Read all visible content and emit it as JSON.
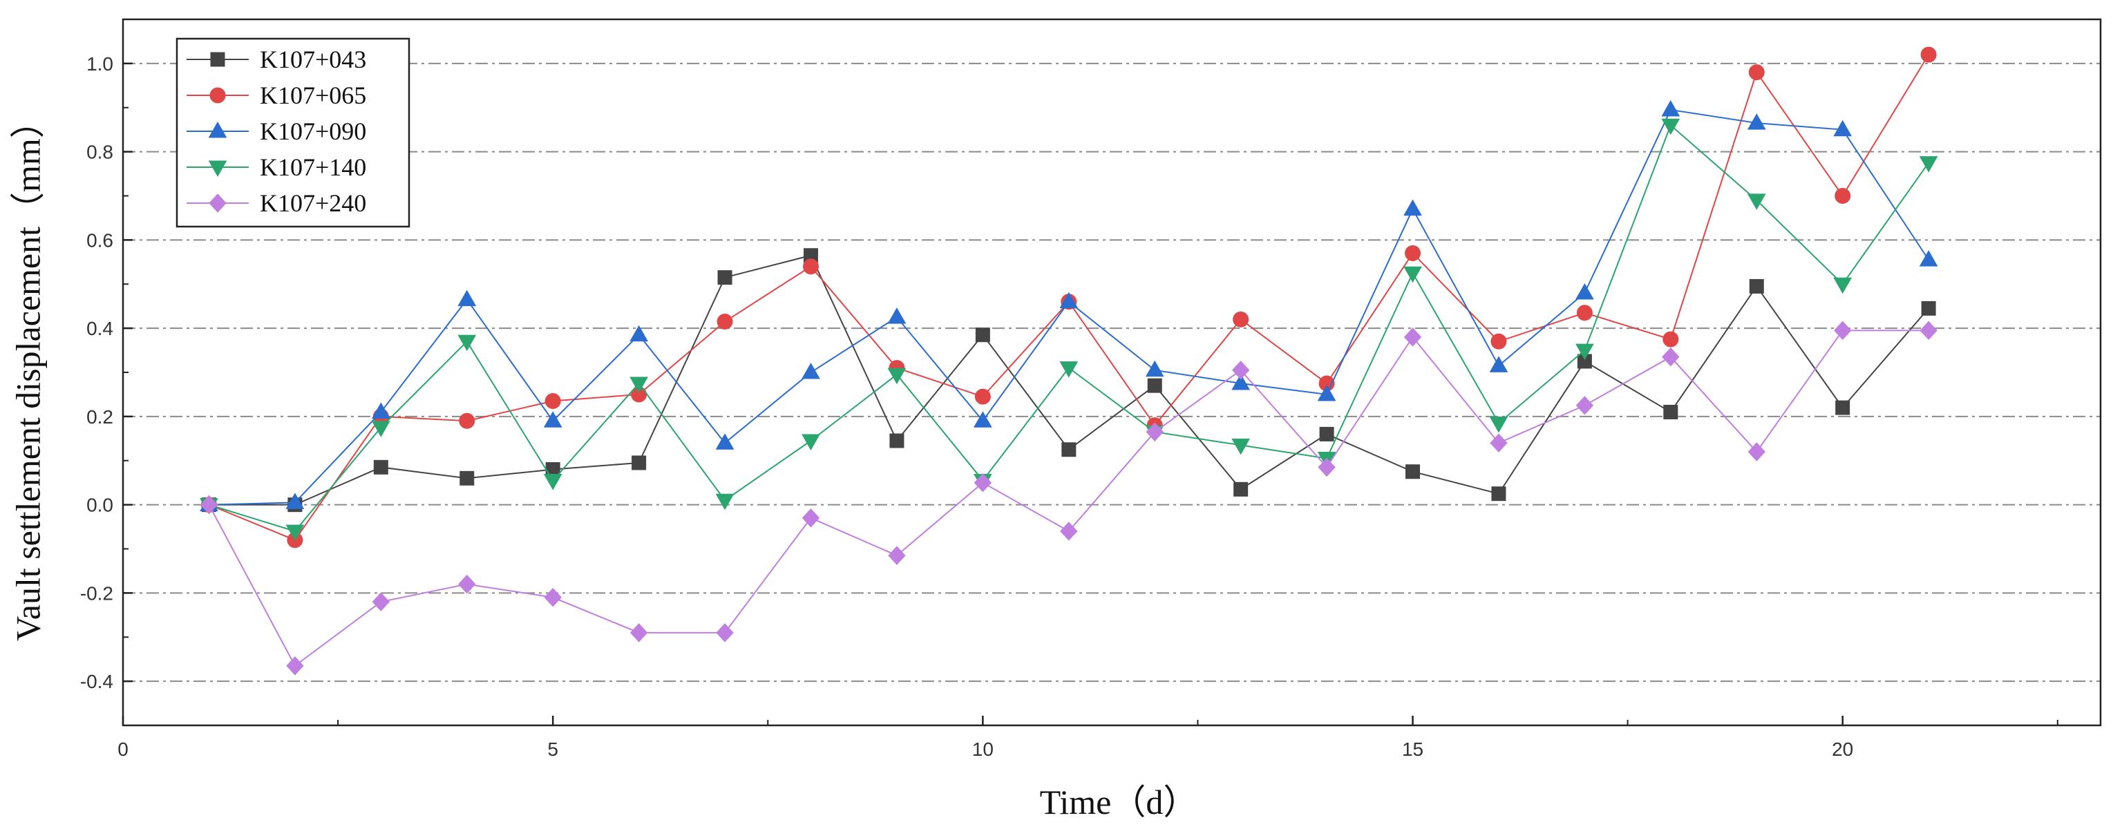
{
  "chart_data": {
    "type": "line",
    "xlabel": "Time（d）",
    "ylabel": "Vault settlement displacement（mm）",
    "xlim": [
      0,
      23
    ],
    "ylim": [
      -0.5,
      1.1
    ],
    "xticks": [
      0,
      5,
      10,
      15,
      20
    ],
    "yticks": [
      -0.4,
      -0.2,
      0.0,
      0.2,
      0.4,
      0.6,
      0.8,
      1.0
    ],
    "ytick_labels": [
      "-0.4",
      "-0.2",
      "0.0",
      "0.2",
      "0.4",
      "0.6",
      "0.8",
      "1.0"
    ],
    "grid": "horizontal dash-dot",
    "legend_position": "top-left",
    "x": [
      1,
      2,
      3,
      4,
      5,
      6,
      7,
      8,
      9,
      10,
      11,
      12,
      13,
      14,
      15,
      16,
      17,
      18,
      19,
      20,
      21
    ],
    "series": [
      {
        "name": "K107+043",
        "marker": "square",
        "color": "#444444",
        "values": [
          0.0,
          0.0,
          0.085,
          0.06,
          0.08,
          0.095,
          0.515,
          0.565,
          0.145,
          0.385,
          0.125,
          0.27,
          0.035,
          0.16,
          0.075,
          0.025,
          0.325,
          0.21,
          0.495,
          0.22,
          0.445
        ]
      },
      {
        "name": "K107+065",
        "marker": "circle",
        "color": "#e04646",
        "values": [
          0.0,
          -0.08,
          0.2,
          0.19,
          0.235,
          0.25,
          0.415,
          0.54,
          0.31,
          0.245,
          0.46,
          0.18,
          0.42,
          0.275,
          0.57,
          0.37,
          0.435,
          0.375,
          0.98,
          0.7,
          1.02
        ]
      },
      {
        "name": "K107+090",
        "marker": "triangle-up",
        "color": "#2b6ccf",
        "values": [
          0.0,
          0.005,
          0.21,
          0.465,
          0.19,
          0.385,
          0.14,
          0.3,
          0.425,
          0.19,
          0.46,
          0.305,
          0.275,
          0.25,
          0.67,
          0.315,
          0.48,
          0.895,
          0.865,
          0.85,
          0.555
        ]
      },
      {
        "name": "K107+140",
        "marker": "triangle-down",
        "color": "#2aa56e",
        "values": [
          0.0,
          -0.06,
          0.175,
          0.37,
          0.055,
          0.275,
          0.01,
          0.145,
          0.295,
          0.055,
          0.31,
          0.165,
          0.135,
          0.105,
          0.525,
          0.185,
          0.35,
          0.86,
          0.69,
          0.5,
          0.775
        ]
      },
      {
        "name": "K107+240",
        "marker": "diamond",
        "color": "#c07ee0",
        "values": [
          0.0,
          -0.365,
          -0.22,
          -0.18,
          -0.21,
          -0.29,
          -0.29,
          -0.03,
          -0.115,
          0.05,
          -0.06,
          0.165,
          0.305,
          0.085,
          0.38,
          0.14,
          0.225,
          0.335,
          0.12,
          0.395,
          0.395
        ]
      }
    ]
  }
}
